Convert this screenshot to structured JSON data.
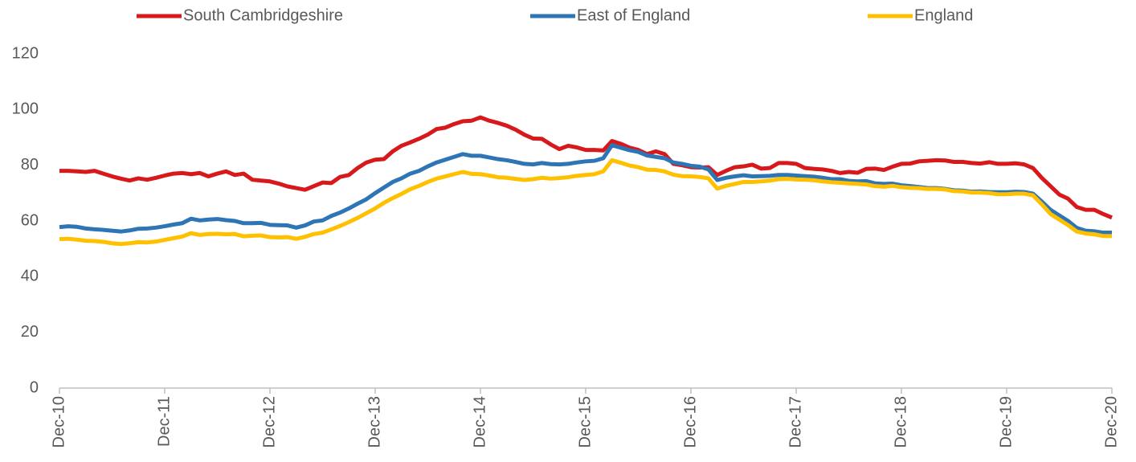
{
  "chart_data": {
    "type": "line",
    "categories": [
      "Dec-10",
      null,
      null,
      null,
      null,
      null,
      null,
      null,
      null,
      null,
      null,
      null,
      "Dec-11",
      null,
      null,
      null,
      null,
      null,
      null,
      null,
      null,
      null,
      null,
      null,
      "Dec-12",
      null,
      null,
      null,
      null,
      null,
      null,
      null,
      null,
      null,
      null,
      null,
      "Dec-13",
      null,
      null,
      null,
      null,
      null,
      null,
      null,
      null,
      null,
      null,
      null,
      "Dec-14",
      null,
      null,
      null,
      null,
      null,
      null,
      null,
      null,
      null,
      null,
      null,
      "Dec-15",
      null,
      null,
      null,
      null,
      null,
      null,
      null,
      null,
      null,
      null,
      null,
      "Dec-16",
      null,
      null,
      null,
      null,
      null,
      null,
      null,
      null,
      null,
      null,
      null,
      "Dec-17",
      null,
      null,
      null,
      null,
      null,
      null,
      null,
      null,
      null,
      null,
      null,
      "Dec-18",
      null,
      null,
      null,
      null,
      null,
      null,
      null,
      null,
      null,
      null,
      null,
      "Dec-19",
      null,
      null,
      null,
      null,
      null,
      null,
      null,
      null,
      null,
      null,
      null,
      "Dec-20"
    ],
    "series": [
      {
        "name": "South Cambridgeshire",
        "color": "#d7191c",
        "values": [
          78,
          78,
          77.8,
          77.6,
          78,
          77,
          76,
          75.2,
          74.5,
          75.3,
          74.8,
          75.5,
          76.3,
          77,
          77.2,
          76.8,
          77.2,
          76,
          77,
          77.8,
          76.5,
          77,
          74.8,
          74.5,
          74.2,
          73.4,
          72.4,
          71.8,
          71.2,
          72.5,
          73.8,
          73.6,
          75.8,
          76.5,
          79,
          81,
          82,
          82.2,
          85,
          87,
          88.2,
          89.5,
          91,
          93,
          93.5,
          94.8,
          95.8,
          96,
          97.2,
          96,
          95.2,
          94.2,
          92.8,
          91,
          89.6,
          89.5,
          87.5,
          85.8,
          87,
          86.4,
          85.5,
          85.5,
          85.3,
          88.7,
          87.7,
          86.3,
          85.5,
          84,
          85,
          84,
          80.5,
          80,
          79.3,
          79.2,
          79.3,
          76.5,
          78,
          79.3,
          79.6,
          80.2,
          78.8,
          79,
          80.8,
          80.8,
          80.5,
          79,
          78.7,
          78.5,
          78,
          77.2,
          77.6,
          77.3,
          78.7,
          78.8,
          78.3,
          79.5,
          80.5,
          80.6,
          81.4,
          81.6,
          81.8,
          81.7,
          81.2,
          81.2,
          80.8,
          80.6,
          81.1,
          80.5,
          80.5,
          80.7,
          80.3,
          79,
          75.5,
          72.5,
          69.5,
          68,
          65,
          64,
          64,
          62.5,
          61.2
        ]
      },
      {
        "name": "East of England",
        "color": "#2e75b6",
        "values": [
          57.8,
          58.1,
          57.9,
          57.3,
          57,
          56.8,
          56.5,
          56.2,
          56.6,
          57.2,
          57.3,
          57.6,
          58.1,
          58.7,
          59.2,
          60.8,
          60.2,
          60.5,
          60.7,
          60.3,
          60,
          59.2,
          59.2,
          59.3,
          58.6,
          58.5,
          58.4,
          57.6,
          58.4,
          59.8,
          60.2,
          61.8,
          63,
          64.5,
          66.2,
          67.8,
          70,
          72,
          74,
          75.3,
          77,
          78,
          79.6,
          81,
          82,
          83,
          84,
          83.4,
          83.4,
          82.8,
          82.2,
          81.8,
          81.2,
          80.5,
          80.3,
          80.8,
          80.4,
          80.3,
          80.5,
          81,
          81.4,
          81.6,
          82.5,
          87.2,
          86.3,
          85.4,
          84.8,
          83.5,
          83,
          82.5,
          81,
          80.5,
          79.8,
          79.5,
          78.5,
          74.7,
          75.5,
          76,
          76.4,
          76,
          76.1,
          76.2,
          76.5,
          76.5,
          76.3,
          76.1,
          75.9,
          75.5,
          75,
          75,
          74.4,
          74.2,
          74.3,
          73.5,
          73.3,
          73.4,
          72.8,
          72.5,
          72.2,
          71.8,
          71.8,
          71.5,
          71,
          70.9,
          70.5,
          70.6,
          70.4,
          70.3,
          70.3,
          70.5,
          70.4,
          69.8,
          67,
          64,
          62,
          60,
          57.5,
          56.5,
          56.3,
          55.8,
          55.8
        ]
      },
      {
        "name": "England",
        "color": "#ffc000",
        "values": [
          53.5,
          53.6,
          53.3,
          52.9,
          52.8,
          52.5,
          52,
          51.7,
          52,
          52.4,
          52.3,
          52.6,
          53.2,
          53.8,
          54.4,
          55.6,
          55,
          55.3,
          55.4,
          55.2,
          55.3,
          54.5,
          54.7,
          54.8,
          54.2,
          54.1,
          54.2,
          53.6,
          54.3,
          55.3,
          55.8,
          57,
          58.2,
          59.6,
          61.1,
          62.8,
          64.5,
          66.5,
          68.2,
          69.7,
          71.4,
          72.6,
          74,
          75.2,
          76,
          76.8,
          77.6,
          76.9,
          76.8,
          76.3,
          75.7,
          75.5,
          75.1,
          74.7,
          75,
          75.5,
          75.2,
          75.4,
          75.7,
          76.2,
          76.5,
          76.8,
          77.8,
          81.8,
          80.9,
          79.9,
          79.3,
          78.4,
          78.3,
          77.8,
          76.6,
          76.1,
          76,
          75.8,
          75.3,
          71.6,
          72.6,
          73.3,
          74,
          74,
          74.2,
          74.5,
          75,
          75.1,
          74.9,
          74.8,
          74.6,
          74.2,
          73.9,
          73.7,
          73.5,
          73.3,
          73.1,
          72.5,
          72.3,
          72.6,
          72.1,
          71.9,
          71.8,
          71.5,
          71.5,
          71.3,
          70.7,
          70.6,
          70.2,
          70.2,
          70,
          69.6,
          69.6,
          69.8,
          69.8,
          69.2,
          66,
          62.5,
          60.5,
          58.5,
          56.2,
          55.5,
          55.2,
          54.6,
          54.6
        ]
      }
    ],
    "ylim": [
      0,
      120
    ],
    "yticks": [
      0,
      20,
      40,
      60,
      80,
      100,
      120
    ],
    "grid": false,
    "legend": "top"
  }
}
